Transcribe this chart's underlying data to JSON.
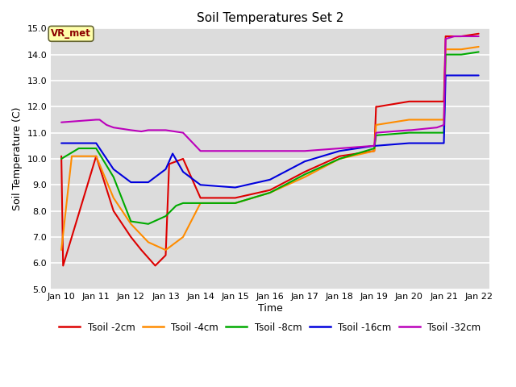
{
  "title": "Soil Temperatures Set 2",
  "xlabel": "Time",
  "ylabel": "Soil Temperature (C)",
  "ylim": [
    5.0,
    15.0
  ],
  "yticks": [
    5.0,
    6.0,
    7.0,
    8.0,
    9.0,
    10.0,
    11.0,
    12.0,
    13.0,
    14.0,
    15.0
  ],
  "xtick_labels": [
    "Jan 10",
    "Jan 11",
    "Jan 12",
    "Jan 13",
    "Jan 14",
    "Jan 15",
    "Jan 16",
    "Jan 17",
    "Jan 18",
    "Jan 19",
    "Jan 20",
    "Jan 21",
    "Jan 22"
  ],
  "xlim": [
    -0.3,
    12.3
  ],
  "background_color": "#dcdcdc",
  "fig_bg": "#ffffff",
  "annotation_text": "VR_met",
  "annotation_color": "#8b0000",
  "annotation_bg": "#ffffaa",
  "annotation_border": "#666633",
  "series": {
    "Tsoil -2cm": {
      "color": "#dd0000",
      "x": [
        0,
        0.05,
        1.0,
        1.5,
        2.0,
        2.3,
        2.7,
        3.0,
        3.1,
        3.5,
        4.0,
        5.0,
        6.0,
        7.0,
        8.0,
        9.0,
        9.05,
        9.1,
        10.0,
        10.05,
        11.0,
        11.05,
        11.5,
        12.0
      ],
      "y": [
        10.1,
        5.9,
        10.1,
        8.0,
        7.0,
        6.5,
        5.9,
        6.3,
        9.8,
        10.0,
        8.5,
        8.5,
        8.8,
        9.5,
        10.1,
        10.3,
        12.0,
        12.0,
        12.2,
        12.2,
        12.2,
        14.7,
        14.7,
        14.8
      ]
    },
    "Tsoil -4cm": {
      "color": "#ff8c00",
      "x": [
        0,
        0.3,
        1.0,
        1.5,
        2.0,
        2.5,
        3.0,
        3.5,
        4.0,
        5.0,
        6.0,
        7.0,
        8.0,
        9.0,
        9.05,
        10.0,
        10.05,
        11.0,
        11.05,
        11.5,
        12.0
      ],
      "y": [
        6.5,
        10.1,
        10.1,
        8.5,
        7.5,
        6.8,
        6.5,
        7.0,
        8.3,
        8.3,
        8.7,
        9.3,
        10.0,
        10.3,
        11.3,
        11.5,
        11.5,
        11.5,
        14.2,
        14.2,
        14.3
      ]
    },
    "Tsoil -8cm": {
      "color": "#00aa00",
      "x": [
        0,
        0.5,
        1.0,
        1.5,
        2.0,
        2.5,
        3.0,
        3.3,
        3.5,
        4.0,
        5.0,
        6.0,
        7.0,
        8.0,
        9.0,
        9.05,
        10.0,
        10.05,
        11.0,
        11.05,
        11.5,
        12.0
      ],
      "y": [
        10.0,
        10.4,
        10.4,
        9.3,
        7.6,
        7.5,
        7.8,
        8.2,
        8.3,
        8.3,
        8.3,
        8.7,
        9.4,
        10.0,
        10.4,
        10.9,
        11.0,
        11.0,
        11.0,
        14.0,
        14.0,
        14.1
      ]
    },
    "Tsoil -16cm": {
      "color": "#0000dd",
      "x": [
        0,
        1.0,
        1.5,
        2.0,
        2.5,
        2.7,
        3.0,
        3.2,
        3.5,
        4.0,
        5.0,
        6.0,
        7.0,
        8.0,
        9.0,
        9.05,
        10.0,
        10.05,
        11.0,
        11.05,
        11.5,
        12.0
      ],
      "y": [
        10.6,
        10.6,
        9.6,
        9.1,
        9.1,
        9.3,
        9.6,
        10.2,
        9.5,
        9.0,
        8.9,
        9.2,
        9.9,
        10.3,
        10.5,
        10.5,
        10.6,
        10.6,
        10.6,
        13.2,
        13.2,
        13.2
      ]
    },
    "Tsoil -32cm": {
      "color": "#bb00bb",
      "x": [
        0,
        1.0,
        1.1,
        1.3,
        1.5,
        2.0,
        2.3,
        2.5,
        3.0,
        3.5,
        4.0,
        5.0,
        6.0,
        7.0,
        8.0,
        9.0,
        9.05,
        10.0,
        10.05,
        10.8,
        11.0,
        11.05,
        11.3,
        11.5,
        12.0
      ],
      "y": [
        11.4,
        11.5,
        11.5,
        11.3,
        11.2,
        11.1,
        11.05,
        11.1,
        11.1,
        11.0,
        10.3,
        10.3,
        10.3,
        10.3,
        10.4,
        10.5,
        11.0,
        11.1,
        11.1,
        11.2,
        11.3,
        14.6,
        14.7,
        14.7,
        14.7
      ]
    }
  }
}
